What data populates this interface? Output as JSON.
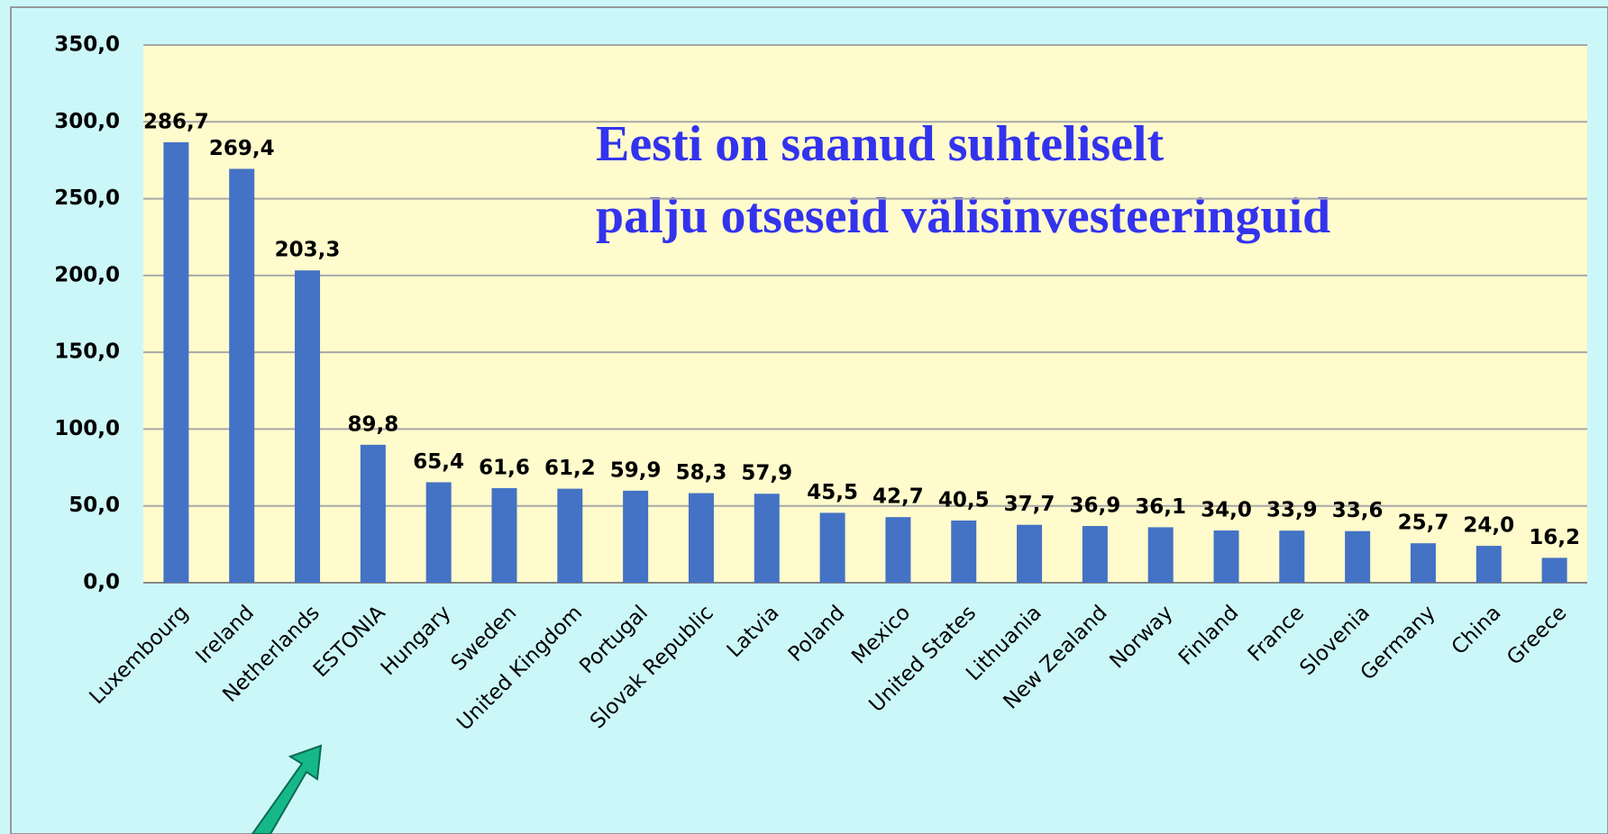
{
  "chart_data": {
    "type": "bar",
    "annotation": [
      "Eesti on saanud suhteliselt",
      "palju otseseid välisinvesteeringuid"
    ],
    "categories": [
      "Luxembourg",
      "Ireland",
      "Netherlands",
      "ESTONIA",
      "Hungary",
      "Sweden",
      "United Kingdom",
      "Portugal",
      "Slovak Republic",
      "Latvia",
      "Poland",
      "Mexico",
      "United States",
      "Lithuania",
      "New Zealand",
      "Norway",
      "Finland",
      "France",
      "Slovenia",
      "Germany",
      "China",
      "Greece"
    ],
    "values": [
      286.7,
      269.4,
      203.3,
      89.8,
      65.4,
      61.6,
      61.2,
      59.9,
      58.3,
      57.9,
      45.5,
      42.7,
      40.5,
      37.7,
      36.9,
      36.1,
      34.0,
      33.9,
      33.6,
      25.7,
      24.0,
      16.2
    ],
    "value_labels": [
      "286,7",
      "269,4",
      "203,3",
      "89,8",
      "65,4",
      "61,6",
      "61,2",
      "59,9",
      "58,3",
      "57,9",
      "45,5",
      "42,7",
      "40,5",
      "37,7",
      "36,9",
      "36,1",
      "34,0",
      "33,9",
      "33,6",
      "25,7",
      "24,0",
      "16,2"
    ],
    "color": "#4472c4",
    "ylim": [
      0,
      350
    ],
    "yticks": [
      {
        "value": 0,
        "label": "0,0"
      },
      {
        "value": 50,
        "label": "50,0"
      },
      {
        "value": 100,
        "label": "100,0"
      },
      {
        "value": 150,
        "label": "150,0"
      },
      {
        "value": 200,
        "label": "200,0"
      },
      {
        "value": 250,
        "label": "250,0"
      },
      {
        "value": 300,
        "label": "300,0"
      },
      {
        "value": 350,
        "label": "350,0"
      }
    ],
    "grid": true
  }
}
